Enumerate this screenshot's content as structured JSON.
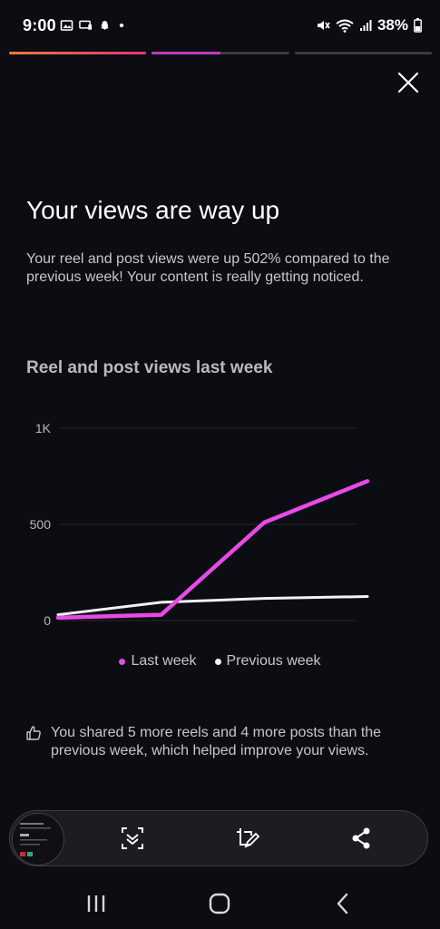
{
  "status_bar": {
    "time": "9:00",
    "left_icons": [
      "image-icon",
      "cast-icon",
      "snapchat-icon",
      "dot-icon"
    ],
    "battery": "38%",
    "right_icons": [
      "mute-icon",
      "wifi-icon",
      "signal-icon",
      "battery-icon"
    ]
  },
  "story_progress": [
    1.0,
    0.5,
    0.0
  ],
  "headline": "Your views are way up",
  "description": "Your reel and post views were up 502% compared to the previous week! Your content is really getting noticed.",
  "chart_title": "Reel and post views last week",
  "chart_data": {
    "type": "line",
    "x": [
      1,
      2,
      3,
      4
    ],
    "ylim": [
      0,
      1000
    ],
    "ytick_labels": [
      "0",
      "500",
      "1K"
    ],
    "yticks": [
      0,
      500,
      1000
    ],
    "grid": true,
    "legend_position": "bottom",
    "series": [
      {
        "name": "Last week",
        "color": "#e84ae6",
        "values": [
          15,
          30,
          510,
          725
        ]
      },
      {
        "name": "Previous week",
        "color": "#f2f2f2",
        "values": [
          30,
          95,
          115,
          125
        ]
      }
    ]
  },
  "insight": {
    "icon": "thumbs-up-icon",
    "text": "You shared 5 more reels and 4 more posts than the previous week, which helped improve your views."
  },
  "toolbar": {
    "thumbnail_icon": "screenshot-thumbnail",
    "buttons": [
      "scroll-capture-icon",
      "edit-icon",
      "share-icon"
    ]
  },
  "navbar": {
    "buttons": [
      "recent-apps-icon",
      "home-icon",
      "back-icon"
    ]
  },
  "colors": {
    "background": "#0c0d12",
    "accent": "#e84ae6"
  }
}
